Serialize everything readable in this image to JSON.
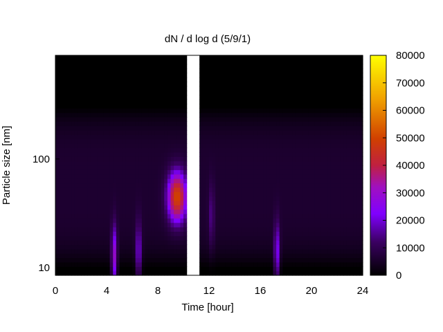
{
  "chart_data": {
    "type": "heatmap",
    "title": "dN / d log d (5/9/1)",
    "xlabel": "Time [hour]",
    "ylabel": "Particle size [nm]",
    "xlim": [
      0,
      24
    ],
    "ylog": true,
    "ylim": [
      8.5,
      900
    ],
    "x_ticks": [
      "0",
      "4",
      "8",
      "12",
      "16",
      "20",
      "24"
    ],
    "x_tick_values": [
      0,
      4,
      8,
      12,
      16,
      20,
      24
    ],
    "y_ticks": [
      "10",
      "100"
    ],
    "y_tick_values": [
      10,
      100
    ],
    "colorbar": {
      "min": 0,
      "max": 80000,
      "ticks": [
        "0",
        "10000",
        "20000",
        "30000",
        "40000",
        "50000",
        "60000",
        "70000",
        "80000"
      ],
      "tick_values": [
        0,
        10000,
        20000,
        30000,
        40000,
        50000,
        60000,
        70000,
        80000
      ]
    },
    "data_gap_hours": [
      10.2,
      11.3
    ],
    "features": [
      {
        "kind": "background",
        "size_range_nm": [
          10,
          300
        ],
        "value": 6000
      },
      {
        "kind": "peak",
        "time_hour": 9.5,
        "size_nm": 45,
        "value": 45000
      },
      {
        "kind": "plume",
        "time_hour": 4.6,
        "size_nm": 12,
        "value": 25000
      },
      {
        "kind": "plume",
        "time_hour": 6.5,
        "size_nm": 13,
        "value": 18000
      },
      {
        "kind": "plume",
        "time_hour": 17.3,
        "size_nm": 13,
        "value": 20000
      },
      {
        "kind": "plume",
        "time_hour": 12.2,
        "size_nm": 30,
        "value": 9000
      }
    ]
  },
  "colors": {
    "palette": [
      "#000000",
      "#3a0060",
      "#8000ff",
      "#c02040",
      "#d04000",
      "#f0a000",
      "#ffff00"
    ]
  }
}
